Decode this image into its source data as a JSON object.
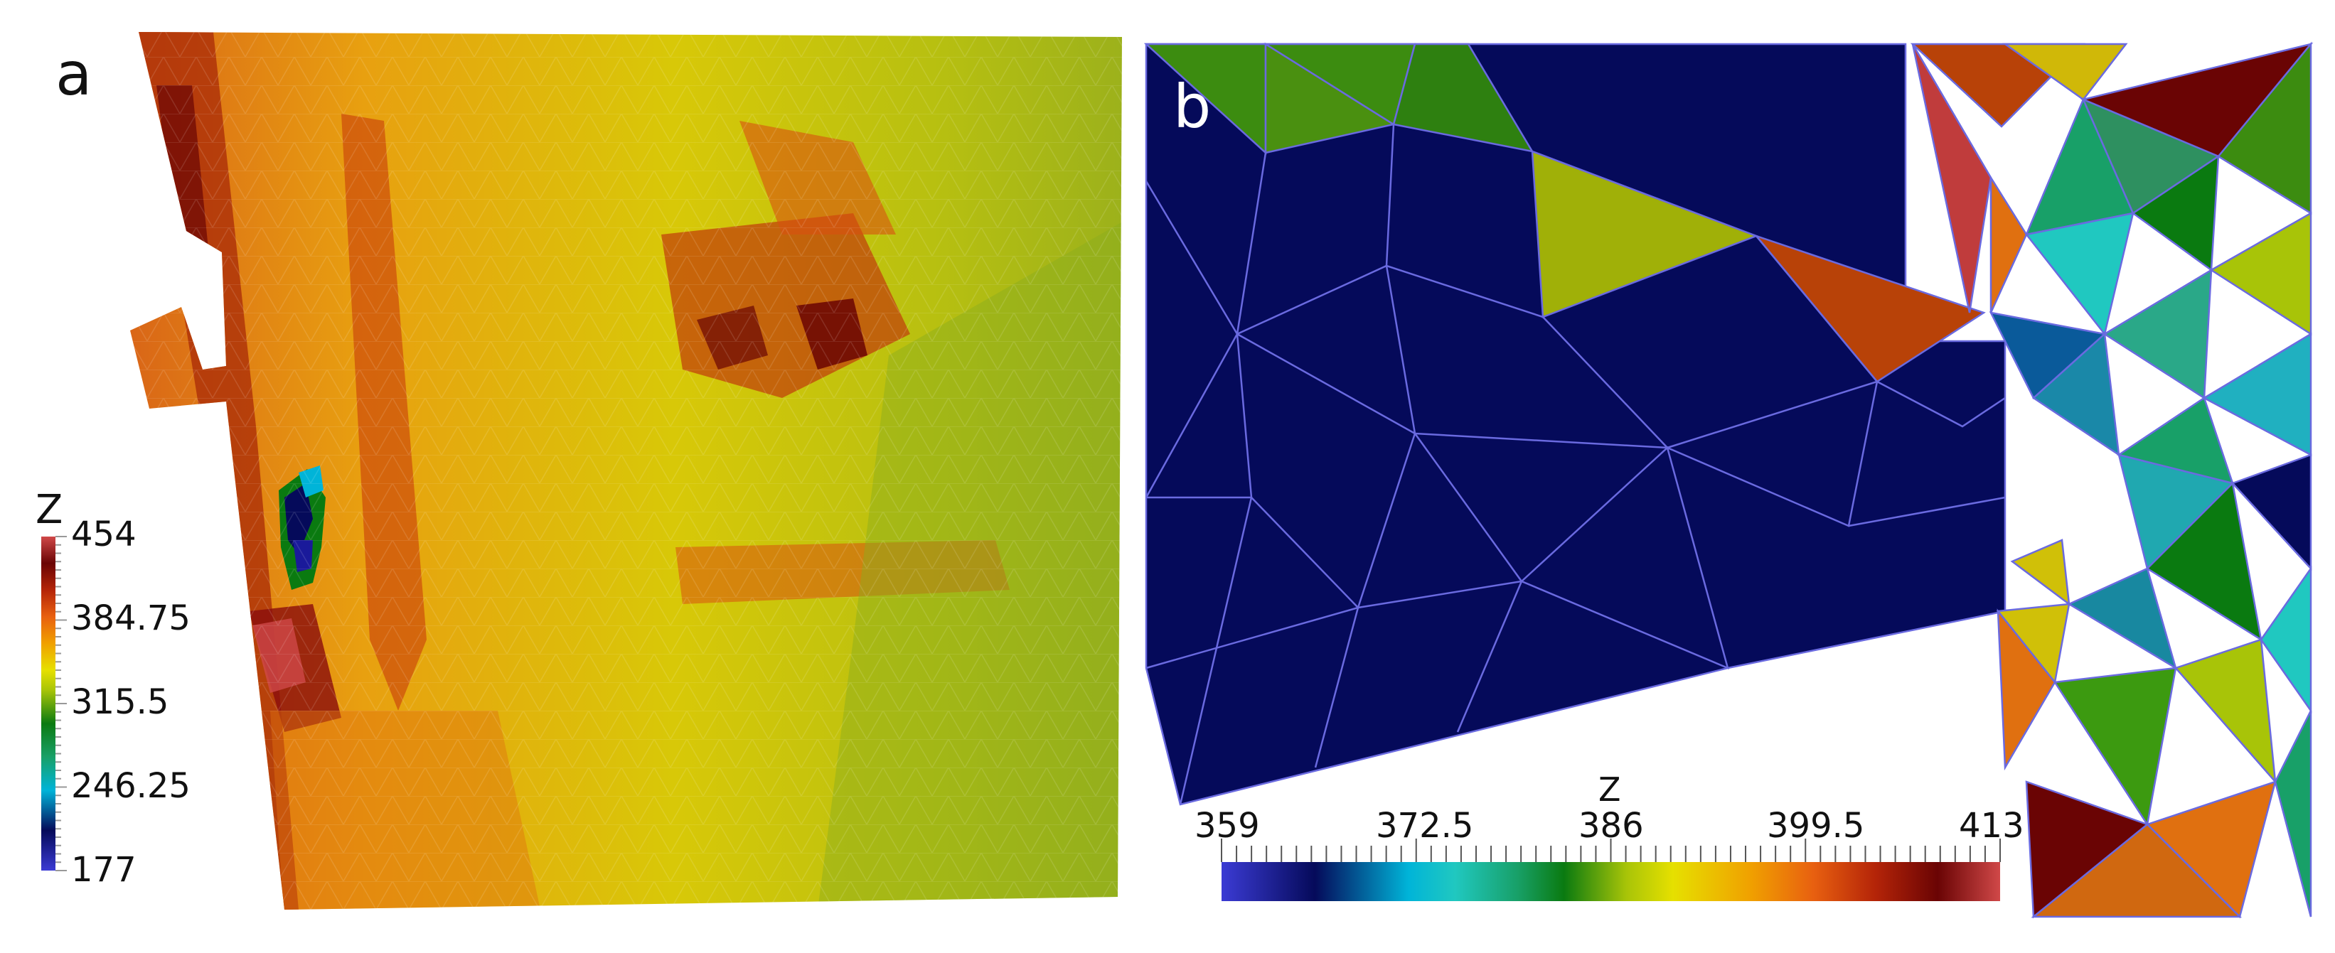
{
  "panels": {
    "a": {
      "label": "a"
    },
    "b": {
      "label": "b"
    }
  },
  "colorbar_a": {
    "title": "Z",
    "ticks": [
      "454",
      "384.75",
      "315.5",
      "246.25",
      "177"
    ]
  },
  "colorbar_b": {
    "title": "Z",
    "ticks": [
      "359",
      "372.5",
      "386",
      "399.5",
      "413"
    ]
  },
  "colormap": [
    "#3b3bd4",
    "#050a5a",
    "#0a2a78",
    "#00b4d8",
    "#20c8c0",
    "#18a068",
    "#0a7a10",
    "#3c9a10",
    "#a8c408",
    "#e6e000",
    "#f0a000",
    "#e86010",
    "#b42408",
    "#6a0404",
    "#a01414",
    "#d04848"
  ]
}
